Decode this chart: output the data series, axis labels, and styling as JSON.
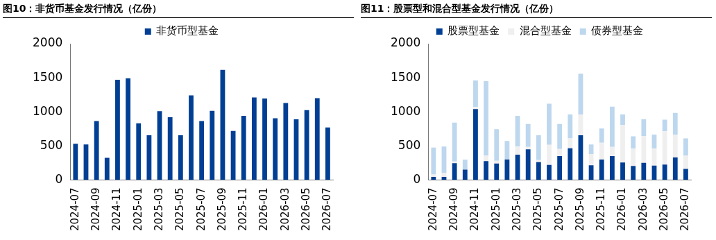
{
  "chart_data": [
    {
      "type": "bar",
      "title": "图10：非货币基金发行情况（亿份）",
      "categories": [
        "2024-07",
        null,
        "2024-09",
        null,
        "2024-11",
        null,
        "2025-01",
        null,
        "2025-03",
        null,
        "2025-05",
        null,
        "2025-07",
        null,
        "2025-09",
        null,
        "2025-11",
        null,
        "2026-01",
        null,
        "2026-03",
        null,
        "2026-05",
        null,
        "2026-07"
      ],
      "series": [
        {
          "name": "非货币型基金",
          "color": "#003f94",
          "values": [
            530,
            520,
            865,
            325,
            1470,
            1490,
            830,
            655,
            1010,
            920,
            655,
            1240,
            865,
            1015,
            1615,
            720,
            940,
            1210,
            1195,
            905,
            1130,
            890,
            1025,
            1200,
            770
          ]
        }
      ],
      "ylim": [
        0,
        2000
      ],
      "yticks": [
        0,
        500,
        1000,
        1500,
        2000
      ],
      "grid": false,
      "legend": "top"
    },
    {
      "type": "bar",
      "title": "图11：股票型和混合型基金发行情况（亿份）",
      "categories": [
        "2024-07",
        null,
        "2024-09",
        null,
        "2024-11",
        null,
        "2025-01",
        null,
        "2025-03",
        null,
        "2025-05",
        null,
        "2025-07",
        null,
        "2025-09",
        null,
        "2025-11",
        null,
        "2026-01",
        null,
        "2026-03",
        null,
        "2026-05",
        null,
        "2026-07"
      ],
      "stacked": true,
      "series": [
        {
          "name": "股票型基金",
          "color": "#003f94",
          "values": [
            45,
            45,
            245,
            150,
            1040,
            275,
            240,
            300,
            370,
            450,
            260,
            220,
            350,
            465,
            655,
            215,
            300,
            350,
            255,
            205,
            250,
            210,
            225,
            330,
            160
          ]
        },
        {
          "name": "混合型基金",
          "color": "#efefef",
          "values": [
            35,
            55,
            25,
            null,
            30,
            85,
            40,
            null,
            120,
            35,
            30,
            295,
            105,
            145,
            305,
            165,
            245,
            135,
            550,
            255,
            395,
            250,
            490,
            335,
            195
          ]
        },
        {
          "name": "债券型基金",
          "color": "#bdd7ee",
          "values": [
            395,
            390,
            570,
            145,
            390,
            1090,
            465,
            270,
            450,
            335,
            365,
            605,
            365,
            350,
            600,
            140,
            210,
            590,
            155,
            180,
            245,
            205,
            170,
            320,
            255
          ]
        }
      ],
      "ylim": [
        0,
        2000
      ],
      "yticks": [
        0,
        500,
        1000,
        1500,
        2000
      ],
      "grid": false,
      "legend": "top"
    }
  ]
}
